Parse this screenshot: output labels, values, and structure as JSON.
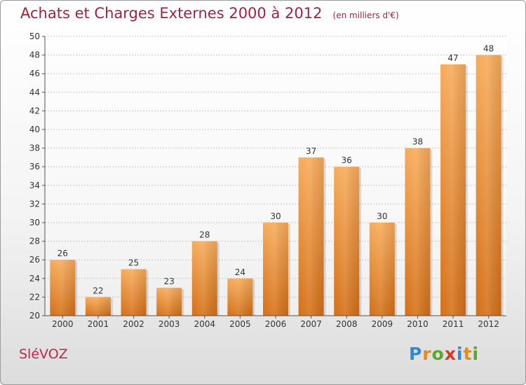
{
  "header": {
    "title": "Achats et Charges Externes 2000 à 2012",
    "unit": "(en milliers d'€)"
  },
  "footer": {
    "commune": "SléVOZ",
    "logo_text": "Proxiti"
  },
  "colors": {
    "title": "#a3223b",
    "bar_light": "#f5a552",
    "bar_dark": "#d9741b",
    "axis": "#555555",
    "grid": "#cccccc"
  },
  "chart_data": {
    "type": "bar",
    "categories": [
      "2000",
      "2001",
      "2002",
      "2003",
      "2004",
      "2005",
      "2006",
      "2007",
      "2008",
      "2009",
      "2010",
      "2011",
      "2012"
    ],
    "values": [
      26,
      22,
      25,
      23,
      28,
      24,
      30,
      37,
      36,
      30,
      38,
      47,
      48
    ],
    "ylim": [
      20,
      50
    ],
    "yticks": [
      20,
      22,
      24,
      26,
      28,
      30,
      32,
      34,
      36,
      38,
      40,
      42,
      44,
      46,
      48,
      50
    ],
    "grid": true,
    "data_labels": true
  }
}
